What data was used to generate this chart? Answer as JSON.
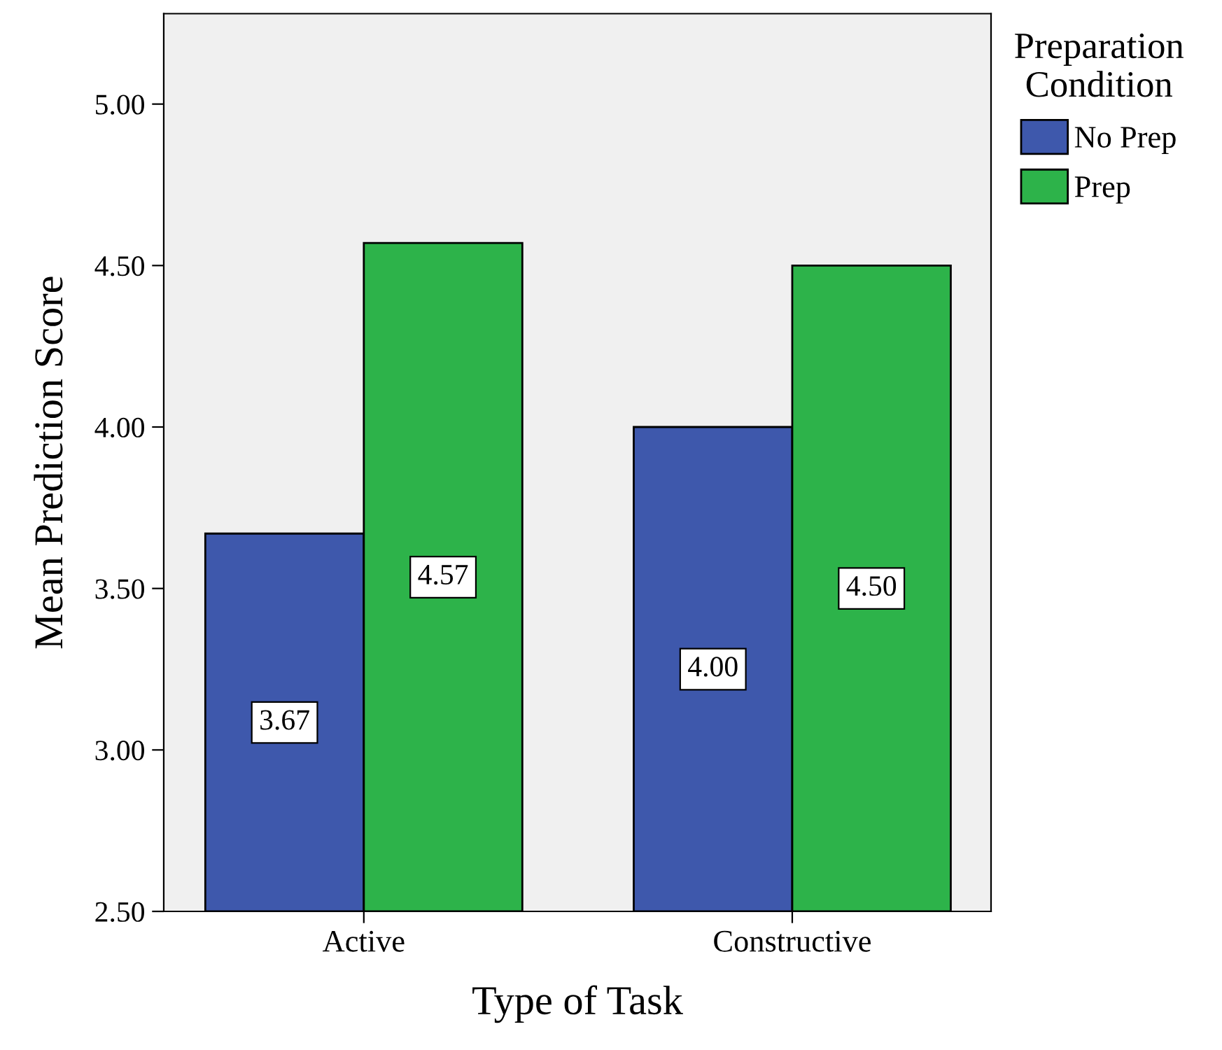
{
  "chart_data": {
    "type": "bar",
    "xlabel": "Type of Task",
    "ylabel": "Mean Prediction Score",
    "legend_title": "Preparation\nCondition",
    "categories": [
      "Active",
      "Constructive"
    ],
    "series": [
      {
        "name": "No Prep",
        "color": "#3e58ac",
        "values": [
          3.67,
          4.0
        ],
        "value_labels": [
          "3.67",
          "4.00"
        ]
      },
      {
        "name": "Prep",
        "color": "#2db34a",
        "values": [
          4.57,
          4.5
        ],
        "value_labels": [
          "4.57",
          "4.50"
        ]
      }
    ],
    "ylim": [
      2.5,
      5.28
    ],
    "yticks": [
      {
        "value": 2.5,
        "label": "2.50"
      },
      {
        "value": 3.0,
        "label": "3.00"
      },
      {
        "value": 3.5,
        "label": "3.50"
      },
      {
        "value": 4.0,
        "label": "4.00"
      },
      {
        "value": 4.5,
        "label": "4.50"
      },
      {
        "value": 5.0,
        "label": "5.00"
      }
    ],
    "grid": false,
    "legend": "right"
  }
}
